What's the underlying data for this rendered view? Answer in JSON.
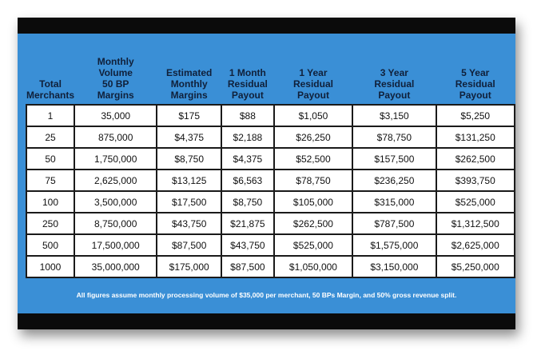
{
  "table": {
    "headers": [
      [
        "Total",
        "Merchants"
      ],
      [
        "Monthly",
        "Volume",
        "50 BP",
        "Margins"
      ],
      [
        "Estimated",
        "Monthly",
        "Margins"
      ],
      [
        "1 Month",
        "Residual",
        "Payout"
      ],
      [
        "1 Year",
        "Residual",
        "Payout"
      ],
      [
        "3 Year",
        "Residual",
        "Payout"
      ],
      [
        "5 Year",
        "Residual",
        "Payout"
      ]
    ],
    "rows": [
      [
        "1",
        "35,000",
        "$175",
        "$88",
        "$1,050",
        "$3,150",
        "$5,250"
      ],
      [
        "25",
        "875,000",
        "$4,375",
        "$2,188",
        "$26,250",
        "$78,750",
        "$131,250"
      ],
      [
        "50",
        "1,750,000",
        "$8,750",
        "$4,375",
        "$52,500",
        "$157,500",
        "$262,500"
      ],
      [
        "75",
        "2,625,000",
        "$13,125",
        "$6,563",
        "$78,750",
        "$236,250",
        "$393,750"
      ],
      [
        "100",
        "3,500,000",
        "$17,500",
        "$8,750",
        "$105,000",
        "$315,000",
        "$525,000"
      ],
      [
        "250",
        "8,750,000",
        "$43,750",
        "$21,875",
        "$262,500",
        "$787,500",
        "$1,312,500"
      ],
      [
        "500",
        "17,500,000",
        "$87,500",
        "$43,750",
        "$525,000",
        "$1,575,000",
        "$2,625,000"
      ],
      [
        "1000",
        "35,000,000",
        "$175,000",
        "$87,500",
        "$1,050,000",
        "$3,150,000",
        "$5,250,000"
      ]
    ]
  },
  "footnote": "All figures assume monthly processing volume of $35,000 per merchant, 50 BPs Margin, and 50% gross revenue split."
}
